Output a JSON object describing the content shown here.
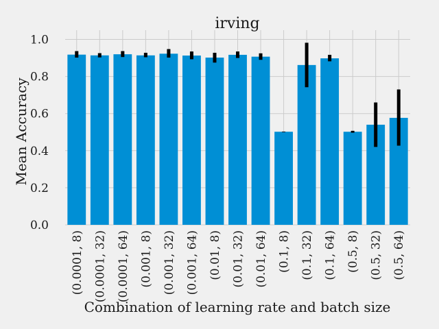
{
  "chart_data": {
    "type": "bar",
    "title": "irving",
    "xlabel": "Combination of learning rate and batch size",
    "ylabel": "Mean Accuracy",
    "ylim": [
      0,
      1.05
    ],
    "yticks": [
      "0.0",
      "0.2",
      "0.4",
      "0.6",
      "0.8",
      "1.0"
    ],
    "grid": true,
    "bar_color": "#008fd5",
    "errorbar_color": "#000000",
    "categories": [
      "(0.0001, 8)",
      "(0.0001, 32)",
      "(0.0001, 64)",
      "(0.001, 8)",
      "(0.001, 32)",
      "(0.001, 64)",
      "(0.01, 8)",
      "(0.01, 32)",
      "(0.01, 64)",
      "(0.1, 8)",
      "(0.1, 32)",
      "(0.1, 64)",
      "(0.5, 8)",
      "(0.5, 32)",
      "(0.5, 64)"
    ],
    "values": [
      0.918,
      0.914,
      0.92,
      0.914,
      0.923,
      0.913,
      0.902,
      0.917,
      0.907,
      0.502,
      0.862,
      0.898,
      0.502,
      0.54,
      0.577
    ],
    "error_low": [
      0.902,
      0.903,
      0.905,
      0.904,
      0.902,
      0.893,
      0.875,
      0.9,
      0.89,
      0.5,
      0.742,
      0.882,
      0.497,
      0.42,
      0.427
    ],
    "error_high": [
      0.937,
      0.926,
      0.937,
      0.928,
      0.948,
      0.935,
      0.928,
      0.935,
      0.925,
      0.503,
      0.982,
      0.917,
      0.507,
      0.66,
      0.73
    ]
  }
}
